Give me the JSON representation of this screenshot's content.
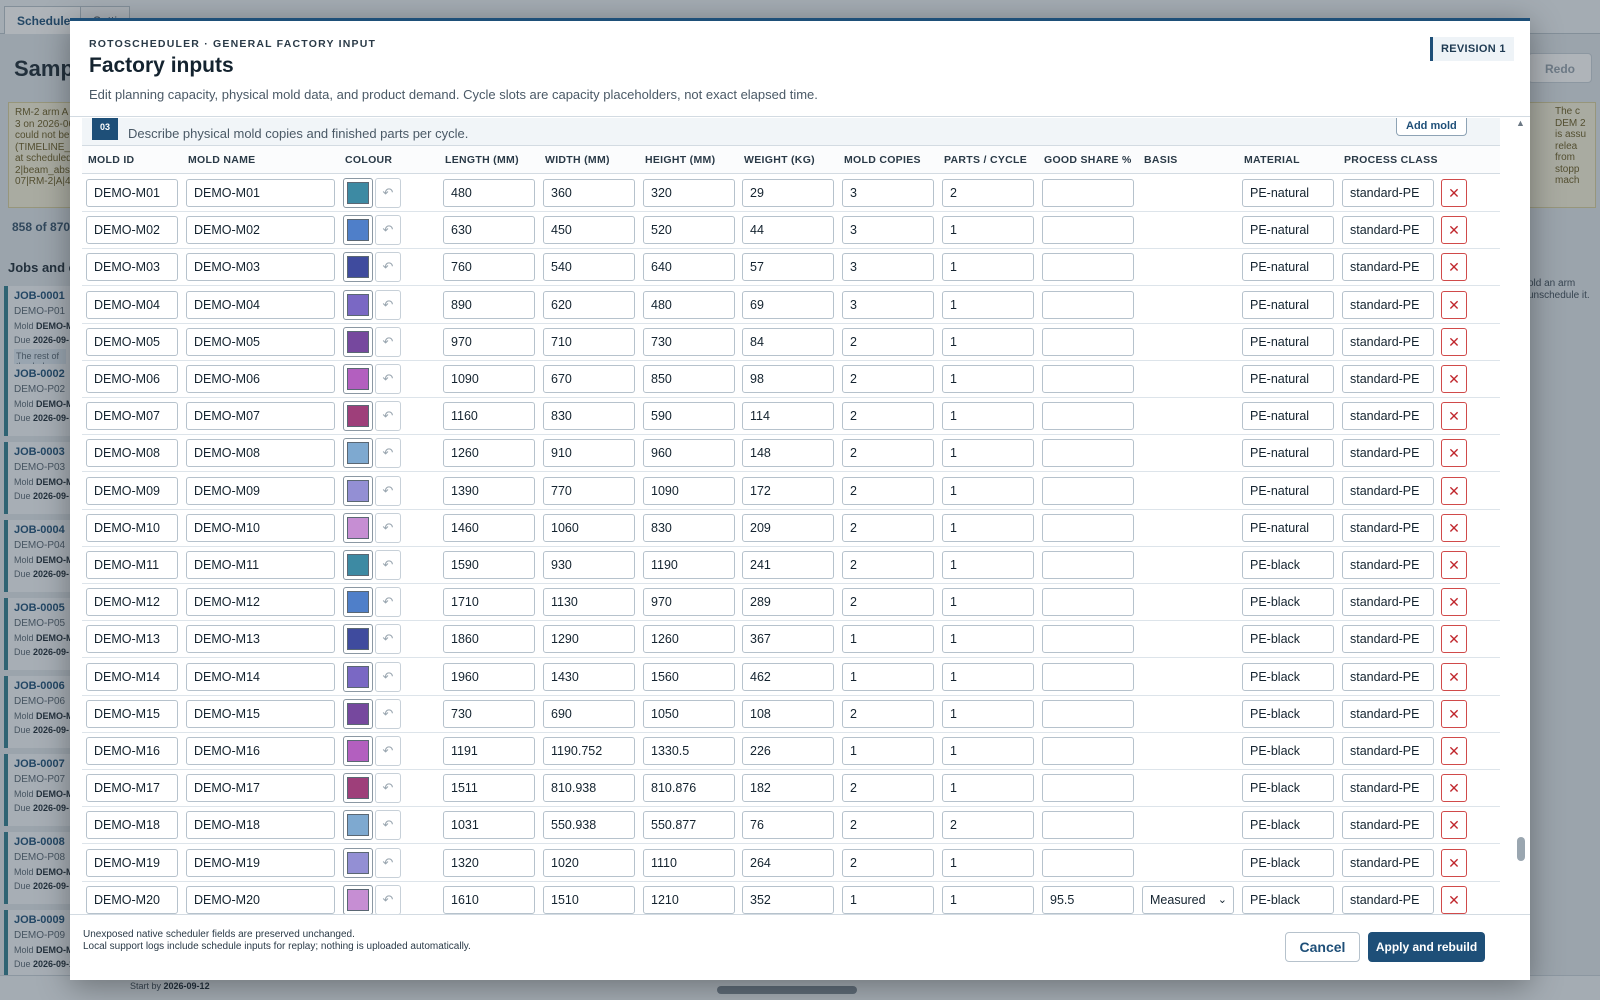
{
  "background": {
    "tabs": [
      "Scheduler",
      "Setti"
    ],
    "title": "Sampl",
    "redo_label": "Redo",
    "log_text": "RM-2 arm A 3 on 2026-06 could not be (TIMELINE_ at scheduled 2|beam_abs 07|RM-2|A|4",
    "log_right_text": "The c DEM 2 is assu relea from stopp mach",
    "count_text": "858 of 870",
    "jobs_title": "Jobs and e",
    "right_note": "old an arm unschedule it.",
    "start_by_label": "Start by",
    "start_by_value": "2026-09-12",
    "jobs": [
      {
        "id": "JOB-0001",
        "product": "DEMO-P01",
        "mold_label": "Mold",
        "mold": "DEMO-M",
        "due_label": "Due",
        "due": "2026-09-",
        "note": "The rest of th whole shots w"
      },
      {
        "id": "JOB-0002",
        "product": "DEMO-P02",
        "mold_label": "Mold",
        "mold": "DEMO-M",
        "due_label": "Due",
        "due": "2026-09-"
      },
      {
        "id": "JOB-0003",
        "product": "DEMO-P03",
        "mold_label": "Mold",
        "mold": "DEMO-M",
        "due_label": "Due",
        "due": "2026-09-"
      },
      {
        "id": "JOB-0004",
        "product": "DEMO-P04",
        "mold_label": "Mold",
        "mold": "DEMO-M",
        "due_label": "Due",
        "due": "2026-09-"
      },
      {
        "id": "JOB-0005",
        "product": "DEMO-P05",
        "mold_label": "Mold",
        "mold": "DEMO-M",
        "due_label": "Due",
        "due": "2026-09-"
      },
      {
        "id": "JOB-0006",
        "product": "DEMO-P06",
        "mold_label": "Mold",
        "mold": "DEMO-M",
        "due_label": "Due",
        "due": "2026-09-"
      },
      {
        "id": "JOB-0007",
        "product": "DEMO-P07",
        "mold_label": "Mold",
        "mold": "DEMO-M",
        "due_label": "Due",
        "due": "2026-09-"
      },
      {
        "id": "JOB-0008",
        "product": "DEMO-P08",
        "mold_label": "Mold",
        "mold": "DEMO-M",
        "due_label": "Due",
        "due": "2026-09-"
      },
      {
        "id": "JOB-0009",
        "product": "DEMO-P09",
        "mold_label": "Mold",
        "mold": "DEMO-M",
        "due_label": "Due",
        "due": "2026-09-13"
      }
    ]
  },
  "modal": {
    "eyebrow": "ROTOSCHEDULER · GENERAL FACTORY INPUT",
    "title": "Factory inputs",
    "subtitle": "Edit planning capacity, physical mold data, and product demand. Cycle slots are capacity placeholders, not exact elapsed time.",
    "revision": "REVISION 1",
    "section": {
      "number": "03",
      "description": "Describe physical mold copies and finished parts per cycle.",
      "add_button": "Add mold"
    },
    "columns": {
      "mold_id": "MOLD ID",
      "mold_name": "MOLD NAME",
      "colour": "COLOUR",
      "length": "LENGTH (MM)",
      "width": "WIDTH (MM)",
      "height": "HEIGHT (MM)",
      "weight": "WEIGHT (KG)",
      "copies": "MOLD COPIES",
      "parts": "PARTS / CYCLE",
      "good": "GOOD SHARE %",
      "basis": "BASIS",
      "material": "MATERIAL",
      "process": "PROCESS CLASS"
    },
    "reset_icon": "undo-arrow-icon",
    "delete_icon": "close-x-icon",
    "rows": [
      {
        "id": "DEMO-M01",
        "name": "DEMO-M01",
        "colour": "#3d8aa3",
        "length": "480",
        "width": "360",
        "height": "320",
        "weight": "29",
        "copies": "3",
        "parts": "2",
        "good": "",
        "basis": "",
        "material": "PE-natural",
        "process": "standard-PE"
      },
      {
        "id": "DEMO-M02",
        "name": "DEMO-M02",
        "colour": "#4f7fc9",
        "length": "630",
        "width": "450",
        "height": "520",
        "weight": "44",
        "copies": "3",
        "parts": "1",
        "good": "",
        "basis": "",
        "material": "PE-natural",
        "process": "standard-PE"
      },
      {
        "id": "DEMO-M03",
        "name": "DEMO-M03",
        "colour": "#3f4b9e",
        "length": "760",
        "width": "540",
        "height": "640",
        "weight": "57",
        "copies": "3",
        "parts": "1",
        "good": "",
        "basis": "",
        "material": "PE-natural",
        "process": "standard-PE"
      },
      {
        "id": "DEMO-M04",
        "name": "DEMO-M04",
        "colour": "#7a68c4",
        "length": "890",
        "width": "620",
        "height": "480",
        "weight": "69",
        "copies": "3",
        "parts": "1",
        "good": "",
        "basis": "",
        "material": "PE-natural",
        "process": "standard-PE"
      },
      {
        "id": "DEMO-M05",
        "name": "DEMO-M05",
        "colour": "#76489e",
        "length": "970",
        "width": "710",
        "height": "730",
        "weight": "84",
        "copies": "2",
        "parts": "1",
        "good": "",
        "basis": "",
        "material": "PE-natural",
        "process": "standard-PE"
      },
      {
        "id": "DEMO-M06",
        "name": "DEMO-M06",
        "colour": "#b35fbf",
        "length": "1090",
        "width": "670",
        "height": "850",
        "weight": "98",
        "copies": "2",
        "parts": "1",
        "good": "",
        "basis": "",
        "material": "PE-natural",
        "process": "standard-PE"
      },
      {
        "id": "DEMO-M07",
        "name": "DEMO-M07",
        "colour": "#9e3f7a",
        "length": "1160",
        "width": "830",
        "height": "590",
        "weight": "114",
        "copies": "2",
        "parts": "1",
        "good": "",
        "basis": "",
        "material": "PE-natural",
        "process": "standard-PE"
      },
      {
        "id": "DEMO-M08",
        "name": "DEMO-M08",
        "colour": "#7ea9d0",
        "length": "1260",
        "width": "910",
        "height": "960",
        "weight": "148",
        "copies": "2",
        "parts": "1",
        "good": "",
        "basis": "",
        "material": "PE-natural",
        "process": "standard-PE"
      },
      {
        "id": "DEMO-M09",
        "name": "DEMO-M09",
        "colour": "#938fd4",
        "length": "1390",
        "width": "770",
        "height": "1090",
        "weight": "172",
        "copies": "2",
        "parts": "1",
        "good": "",
        "basis": "",
        "material": "PE-natural",
        "process": "standard-PE"
      },
      {
        "id": "DEMO-M10",
        "name": "DEMO-M10",
        "colour": "#c68ed3",
        "length": "1460",
        "width": "1060",
        "height": "830",
        "weight": "209",
        "copies": "2",
        "parts": "1",
        "good": "",
        "basis": "",
        "material": "PE-natural",
        "process": "standard-PE"
      },
      {
        "id": "DEMO-M11",
        "name": "DEMO-M11",
        "colour": "#3d8aa3",
        "length": "1590",
        "width": "930",
        "height": "1190",
        "weight": "241",
        "copies": "2",
        "parts": "1",
        "good": "",
        "basis": "",
        "material": "PE-black",
        "process": "standard-PE"
      },
      {
        "id": "DEMO-M12",
        "name": "DEMO-M12",
        "colour": "#4f7fc9",
        "length": "1710",
        "width": "1130",
        "height": "970",
        "weight": "289",
        "copies": "2",
        "parts": "1",
        "good": "",
        "basis": "",
        "material": "PE-black",
        "process": "standard-PE"
      },
      {
        "id": "DEMO-M13",
        "name": "DEMO-M13",
        "colour": "#3f4b9e",
        "length": "1860",
        "width": "1290",
        "height": "1260",
        "weight": "367",
        "copies": "1",
        "parts": "1",
        "good": "",
        "basis": "",
        "material": "PE-black",
        "process": "standard-PE"
      },
      {
        "id": "DEMO-M14",
        "name": "DEMO-M14",
        "colour": "#7a68c4",
        "length": "1960",
        "width": "1430",
        "height": "1560",
        "weight": "462",
        "copies": "1",
        "parts": "1",
        "good": "",
        "basis": "",
        "material": "PE-black",
        "process": "standard-PE"
      },
      {
        "id": "DEMO-M15",
        "name": "DEMO-M15",
        "colour": "#76489e",
        "length": "730",
        "width": "690",
        "height": "1050",
        "weight": "108",
        "copies": "2",
        "parts": "1",
        "good": "",
        "basis": "",
        "material": "PE-black",
        "process": "standard-PE"
      },
      {
        "id": "DEMO-M16",
        "name": "DEMO-M16",
        "colour": "#b35fbf",
        "length": "1191",
        "width": "1190.752",
        "height": "1330.5",
        "weight": "226",
        "copies": "1",
        "parts": "1",
        "good": "",
        "basis": "",
        "material": "PE-black",
        "process": "standard-PE"
      },
      {
        "id": "DEMO-M17",
        "name": "DEMO-M17",
        "colour": "#9e3f7a",
        "length": "1511",
        "width": "810.938",
        "height": "810.876",
        "weight": "182",
        "copies": "2",
        "parts": "1",
        "good": "",
        "basis": "",
        "material": "PE-black",
        "process": "standard-PE"
      },
      {
        "id": "DEMO-M18",
        "name": "DEMO-M18",
        "colour": "#7ea9d0",
        "length": "1031",
        "width": "550.938",
        "height": "550.877",
        "weight": "76",
        "copies": "2",
        "parts": "2",
        "good": "",
        "basis": "",
        "material": "PE-black",
        "process": "standard-PE"
      },
      {
        "id": "DEMO-M19",
        "name": "DEMO-M19",
        "colour": "#938fd4",
        "length": "1320",
        "width": "1020",
        "height": "1110",
        "weight": "264",
        "copies": "2",
        "parts": "1",
        "good": "",
        "basis": "",
        "material": "PE-black",
        "process": "standard-PE"
      },
      {
        "id": "DEMO-M20",
        "name": "DEMO-M20",
        "colour": "#c68ed3",
        "length": "1610",
        "width": "1510",
        "height": "1210",
        "weight": "352",
        "copies": "1",
        "parts": "1",
        "good": "95.5",
        "basis": "Measured",
        "material": "PE-black",
        "process": "standard-PE"
      }
    ],
    "footer": {
      "note1": "Unexposed native scheduler fields are preserved unchanged.",
      "note2": "Local support logs include schedule inputs for replay; nothing is uploaded automatically.",
      "cancel": "Cancel",
      "apply": "Apply and rebuild"
    }
  }
}
